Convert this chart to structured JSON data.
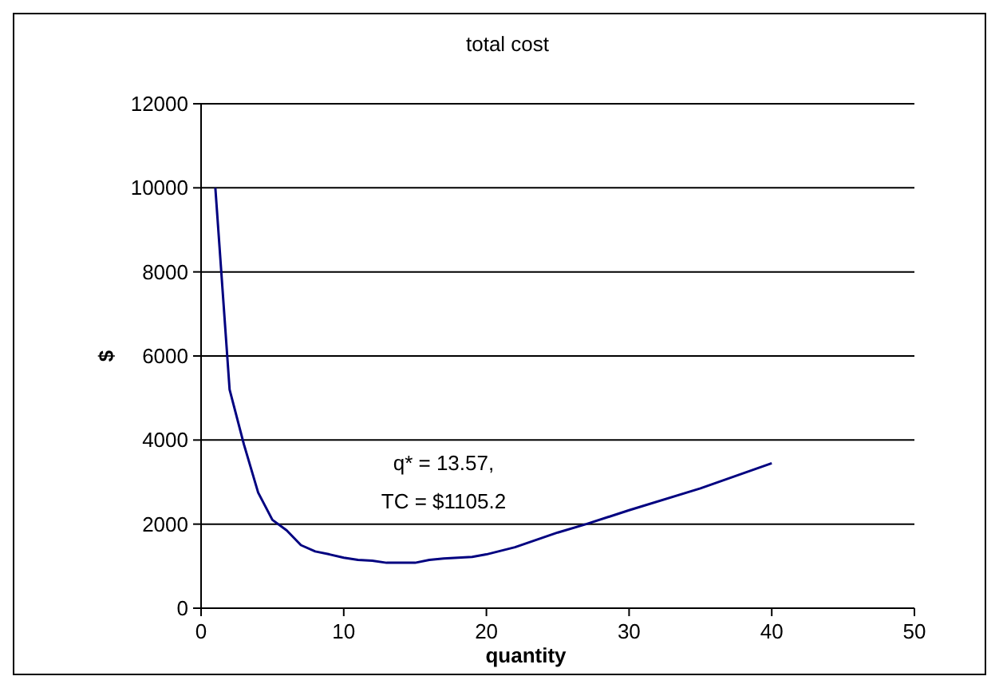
{
  "chart_data": {
    "type": "line",
    "title": "total cost",
    "xlabel": "quantity",
    "ylabel": "$",
    "x": [
      1,
      2,
      3,
      4,
      5,
      6,
      7,
      8,
      9,
      10,
      11,
      12,
      13,
      14,
      15,
      16,
      17,
      18,
      19,
      20,
      22,
      25,
      27,
      30,
      35,
      40
    ],
    "series": [
      {
        "color": "#000080",
        "values": [
          10000,
          5200,
          3900,
          2750,
          2100,
          1850,
          1500,
          1350,
          1280,
          1200,
          1150,
          1130,
          1080,
          1080,
          1080,
          1150,
          1180,
          1200,
          1220,
          1280,
          1450,
          1800,
          2000,
          2330,
          2850,
          3450
        ]
      }
    ],
    "xlim": [
      0,
      50
    ],
    "xticks": [
      0,
      10,
      20,
      30,
      40,
      50
    ],
    "ylim": [
      0,
      12000
    ],
    "yticks": [
      0,
      2000,
      4000,
      6000,
      8000,
      10000,
      12000
    ],
    "grid": "y",
    "marker": "none",
    "line_style": "solid",
    "annotations": [
      "q* = 13.57,\nTC = $1105.2"
    ]
  }
}
